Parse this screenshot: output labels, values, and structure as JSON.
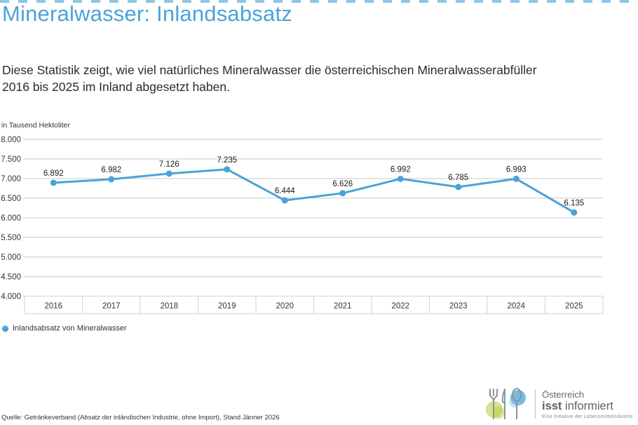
{
  "page": {
    "title": "Mineralwasser: Inlandsabsatz",
    "subtitle": "Diese Statistik zeigt, wie viel natürliches Mineralwasser die österreichischen Mineralwasserabfüller 2016 bis 2025 im Inland abgesetzt haben.",
    "source": "Quelle: Getränkeverband (Absatz der inländischen Industrie, ohne Import),  Stand Jänner 2026",
    "accent_color": "#4aa3d8"
  },
  "chart_data": {
    "type": "line",
    "title": "Mineralwasser: Inlandsabsatz",
    "ylabel": "in Tausend Hektoliter",
    "xlabel": "",
    "categories": [
      "2016",
      "2017",
      "2018",
      "2019",
      "2020",
      "2021",
      "2022",
      "2023",
      "2024",
      "2025"
    ],
    "series": [
      {
        "name": "Inlandsabsatz von Mineralwasser",
        "values": [
          6892,
          6982,
          7126,
          7235,
          6444,
          6626,
          6992,
          6785,
          6993,
          6135
        ],
        "labels": [
          "6.892",
          "6.982",
          "7.126",
          "7.235",
          "6.444",
          "6.626",
          "6.992",
          "6.785",
          "6.993",
          "6.135"
        ],
        "color": "#4aa3d8"
      }
    ],
    "ylim": [
      4000,
      8000
    ],
    "ytick_step": 500,
    "ytick_labels": [
      "8.000",
      "7.500",
      "7.000",
      "6.500",
      "6.000",
      "5.500",
      "5.000",
      "4.500",
      "4.000"
    ],
    "grid": true,
    "legend_position": "bottom-left",
    "grid_color": "#c9c9c9",
    "label_color": "#1a1a1a",
    "tick_color": "#333333"
  },
  "legend": {
    "label": "Inlandsabsatz von Mineralwasser"
  },
  "logo": {
    "line1": "Österreich",
    "line2_bold": "isst",
    "line2_rest": " informiert",
    "line3": "Eine Initiative der Lebensmittelindustrie"
  }
}
